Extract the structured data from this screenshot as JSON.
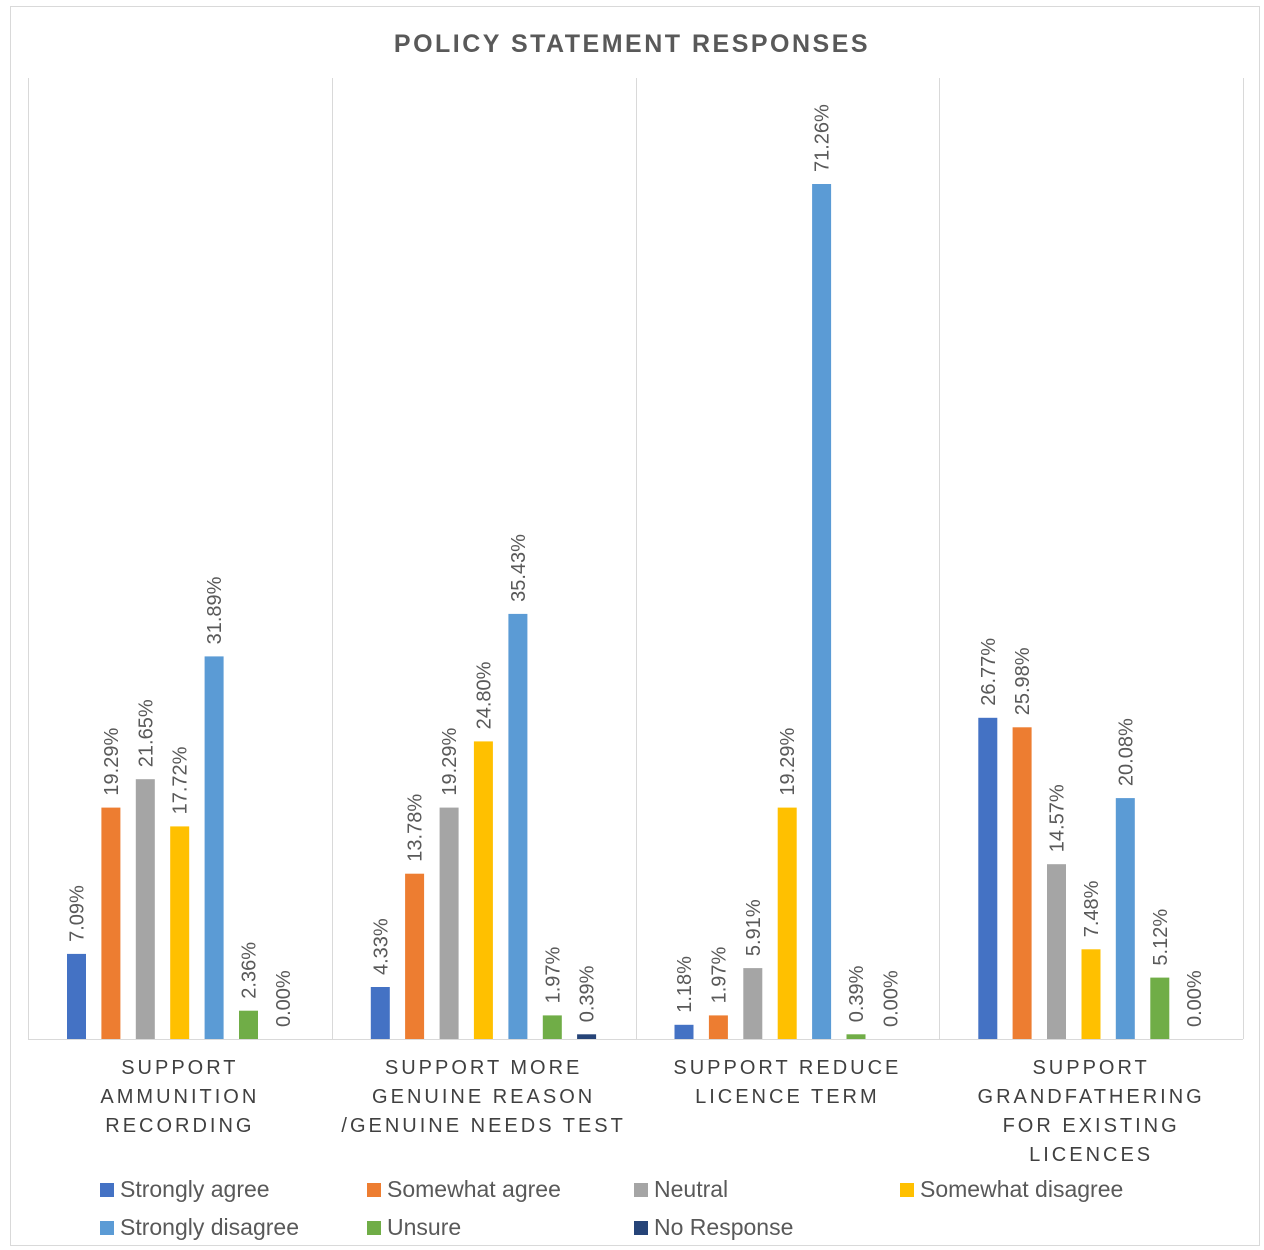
{
  "chart_data": {
    "type": "bar",
    "title": "POLICY STATEMENT RESPONSES",
    "categories": [
      [
        "SUPPORT",
        "AMMUNITION",
        "RECORDING"
      ],
      [
        "SUPPORT MORE",
        "GENUINE REASON",
        "/GENUINE NEEDS TEST"
      ],
      [
        "SUPPORT REDUCE",
        "LICENCE TERM"
      ],
      [
        "SUPPORT",
        "GRANDFATHERING",
        "FOR EXISTING",
        "LICENCES"
      ]
    ],
    "series": [
      {
        "name": "Strongly agree",
        "color": "#4472c4",
        "values": [
          7.09,
          4.33,
          1.18,
          26.77
        ],
        "labels": [
          "7.09%",
          "4.33%",
          "1.18%",
          "26.77%"
        ]
      },
      {
        "name": "Somewhat agree",
        "color": "#ed7d31",
        "values": [
          19.29,
          13.78,
          1.97,
          25.98
        ],
        "labels": [
          "19.29%",
          "13.78%",
          "1.97%",
          "25.98%"
        ]
      },
      {
        "name": "Neutral",
        "color": "#a5a5a5",
        "values": [
          21.65,
          19.29,
          5.91,
          14.57
        ],
        "labels": [
          "21.65%",
          "19.29%",
          "5.91%",
          "14.57%"
        ]
      },
      {
        "name": "Somewhat disagree",
        "color": "#ffc000",
        "values": [
          17.72,
          24.8,
          19.29,
          7.48
        ],
        "labels": [
          "17.72%",
          "24.80%",
          "19.29%",
          "7.48%"
        ]
      },
      {
        "name": "Strongly disagree",
        "color": "#5b9bd5",
        "values": [
          31.89,
          35.43,
          71.26,
          20.08
        ],
        "labels": [
          "31.89%",
          "35.43%",
          "71.26%",
          "20.08%"
        ]
      },
      {
        "name": "Unsure",
        "color": "#70ad47",
        "values": [
          2.36,
          1.97,
          0.39,
          5.12
        ],
        "labels": [
          "2.36%",
          "1.97%",
          "0.39%",
          "5.12%"
        ]
      },
      {
        "name": "No Response",
        "color": "#264478",
        "values": [
          0.0,
          0.39,
          0.0,
          0.0
        ],
        "labels": [
          "0.00%",
          "0.39%",
          "0.00%",
          "0.00%"
        ]
      }
    ],
    "ylim": [
      0,
      71.26
    ],
    "grid": "vertical category separators",
    "legend": "bottom",
    "label_color": "#595959",
    "separator_color": "#d9d9d9"
  }
}
